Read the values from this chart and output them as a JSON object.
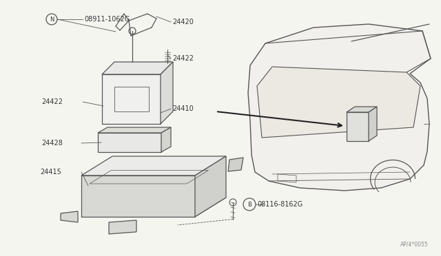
{
  "bg_color": "#f5f5f0",
  "line_color": "#555555",
  "text_color": "#333333",
  "thin_lc": "#777777",
  "diagram_note": "AP/4*0055",
  "fig_width": 6.4,
  "fig_height": 3.72,
  "labels": {
    "N_bolt": "08911-1062G",
    "B_bolt": "08116-8162G",
    "p24420": "24420",
    "p24422_r": "24422",
    "p24422_l": "24422",
    "p24410": "24410",
    "p24428": "24428",
    "p24415": "24415"
  }
}
